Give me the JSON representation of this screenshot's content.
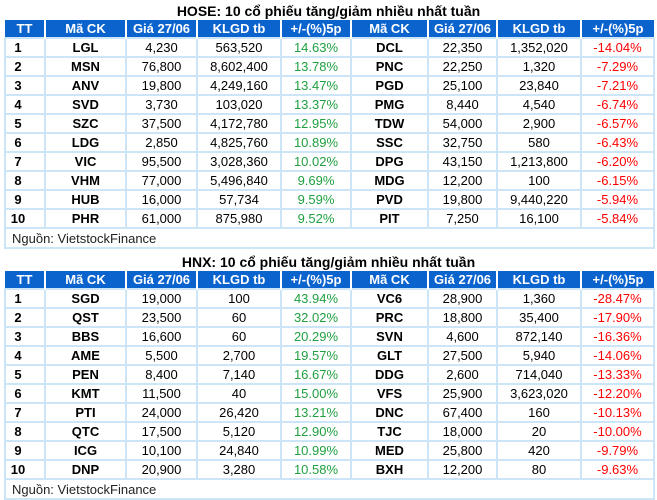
{
  "hose": {
    "title": "HOSE: 10 cổ phiếu tăng/giảm nhiều nhất tuần",
    "headers": [
      "TT",
      "Mã CK",
      "Giá 27/06",
      "KLGD tb",
      "+/-(%)5p",
      "Mã CK",
      "Giá 27/06",
      "KLGD tb",
      "+/-(%)5p"
    ],
    "rows": [
      {
        "tt": "1",
        "up_code": "LGL",
        "up_price": "4,230",
        "up_vol": "563,520",
        "up_pct": "14.63%",
        "down_code": "DCL",
        "down_price": "22,350",
        "down_vol": "1,352,020",
        "down_pct": "-14.04%"
      },
      {
        "tt": "2",
        "up_code": "MSN",
        "up_price": "76,800",
        "up_vol": "8,602,400",
        "up_pct": "13.78%",
        "down_code": "PNC",
        "down_price": "22,250",
        "down_vol": "1,320",
        "down_pct": "-7.29%"
      },
      {
        "tt": "3",
        "up_code": "ANV",
        "up_price": "19,800",
        "up_vol": "4,249,160",
        "up_pct": "13.47%",
        "down_code": "PGD",
        "down_price": "25,100",
        "down_vol": "23,840",
        "down_pct": "-7.21%"
      },
      {
        "tt": "4",
        "up_code": "SVD",
        "up_price": "3,730",
        "up_vol": "103,020",
        "up_pct": "13.37%",
        "down_code": "PMG",
        "down_price": "8,440",
        "down_vol": "4,540",
        "down_pct": "-6.74%"
      },
      {
        "tt": "5",
        "up_code": "SZC",
        "up_price": "37,500",
        "up_vol": "4,172,780",
        "up_pct": "12.95%",
        "down_code": "TDW",
        "down_price": "54,000",
        "down_vol": "2,900",
        "down_pct": "-6.57%"
      },
      {
        "tt": "6",
        "up_code": "LDG",
        "up_price": "2,850",
        "up_vol": "4,825,760",
        "up_pct": "10.89%",
        "down_code": "SSC",
        "down_price": "32,750",
        "down_vol": "580",
        "down_pct": "-6.43%"
      },
      {
        "tt": "7",
        "up_code": "VIC",
        "up_price": "95,500",
        "up_vol": "3,028,360",
        "up_pct": "10.02%",
        "down_code": "DPG",
        "down_price": "43,150",
        "down_vol": "1,213,800",
        "down_pct": "-6.20%"
      },
      {
        "tt": "8",
        "up_code": "VHM",
        "up_price": "77,000",
        "up_vol": "5,496,840",
        "up_pct": "9.69%",
        "down_code": "MDG",
        "down_price": "12,200",
        "down_vol": "100",
        "down_pct": "-6.15%"
      },
      {
        "tt": "9",
        "up_code": "HUB",
        "up_price": "16,000",
        "up_vol": "57,734",
        "up_pct": "9.59%",
        "down_code": "PVD",
        "down_price": "19,800",
        "down_vol": "9,440,220",
        "down_pct": "-5.94%"
      },
      {
        "tt": "10",
        "up_code": "PHR",
        "up_price": "61,000",
        "up_vol": "875,980",
        "up_pct": "9.52%",
        "down_code": "PIT",
        "down_price": "7,250",
        "down_vol": "16,100",
        "down_pct": "-5.84%"
      }
    ],
    "source": "Nguồn: VietstockFinance"
  },
  "hnx": {
    "title": "HNX: 10 cổ phiếu tăng/giảm nhiều nhất tuần",
    "headers": [
      "TT",
      "Mã CK",
      "Giá 27/06",
      "KLGD tb",
      "+/-(%)5p",
      "Mã CK",
      "Giá 27/06",
      "KLGD tb",
      "+/-(%)5p"
    ],
    "rows": [
      {
        "tt": "1",
        "up_code": "SGD",
        "up_price": "19,000",
        "up_vol": "100",
        "up_pct": "43.94%",
        "down_code": "VC6",
        "down_price": "28,900",
        "down_vol": "1,360",
        "down_pct": "-28.47%"
      },
      {
        "tt": "2",
        "up_code": "QST",
        "up_price": "23,500",
        "up_vol": "60",
        "up_pct": "32.02%",
        "down_code": "PRC",
        "down_price": "18,800",
        "down_vol": "35,400",
        "down_pct": "-17.90%"
      },
      {
        "tt": "3",
        "up_code": "BBS",
        "up_price": "16,600",
        "up_vol": "60",
        "up_pct": "20.29%",
        "down_code": "SVN",
        "down_price": "4,600",
        "down_vol": "872,140",
        "down_pct": "-16.36%"
      },
      {
        "tt": "4",
        "up_code": "AME",
        "up_price": "5,500",
        "up_vol": "2,700",
        "up_pct": "19.57%",
        "down_code": "GLT",
        "down_price": "27,500",
        "down_vol": "5,940",
        "down_pct": "-14.06%"
      },
      {
        "tt": "5",
        "up_code": "PEN",
        "up_price": "8,400",
        "up_vol": "7,140",
        "up_pct": "16.67%",
        "down_code": "DDG",
        "down_price": "2,600",
        "down_vol": "714,040",
        "down_pct": "-13.33%"
      },
      {
        "tt": "6",
        "up_code": "KMT",
        "up_price": "11,500",
        "up_vol": "40",
        "up_pct": "15.00%",
        "down_code": "VFS",
        "down_price": "25,900",
        "down_vol": "3,623,020",
        "down_pct": "-12.20%"
      },
      {
        "tt": "7",
        "up_code": "PTI",
        "up_price": "24,000",
        "up_vol": "26,420",
        "up_pct": "13.21%",
        "down_code": "DNC",
        "down_price": "67,400",
        "down_vol": "160",
        "down_pct": "-10.13%"
      },
      {
        "tt": "8",
        "up_code": "QTC",
        "up_price": "17,500",
        "up_vol": "5,120",
        "up_pct": "12.90%",
        "down_code": "TJC",
        "down_price": "18,000",
        "down_vol": "20",
        "down_pct": "-10.00%"
      },
      {
        "tt": "9",
        "up_code": "ICG",
        "up_price": "10,100",
        "up_vol": "24,840",
        "up_pct": "10.99%",
        "down_code": "MED",
        "down_price": "25,800",
        "down_vol": "420",
        "down_pct": "-9.79%"
      },
      {
        "tt": "10",
        "up_code": "DNP",
        "up_price": "20,900",
        "up_vol": "3,280",
        "up_pct": "10.58%",
        "down_code": "BXH",
        "down_price": "12,200",
        "down_vol": "80",
        "down_pct": "-9.63%"
      }
    ],
    "source": "Nguồn: VietstockFinance"
  },
  "colors": {
    "header_bg": "#0b63ce",
    "header_text": "#ffffff",
    "grid": "#cce6f7",
    "gain": "#20a040",
    "loss": "#ff0000"
  }
}
